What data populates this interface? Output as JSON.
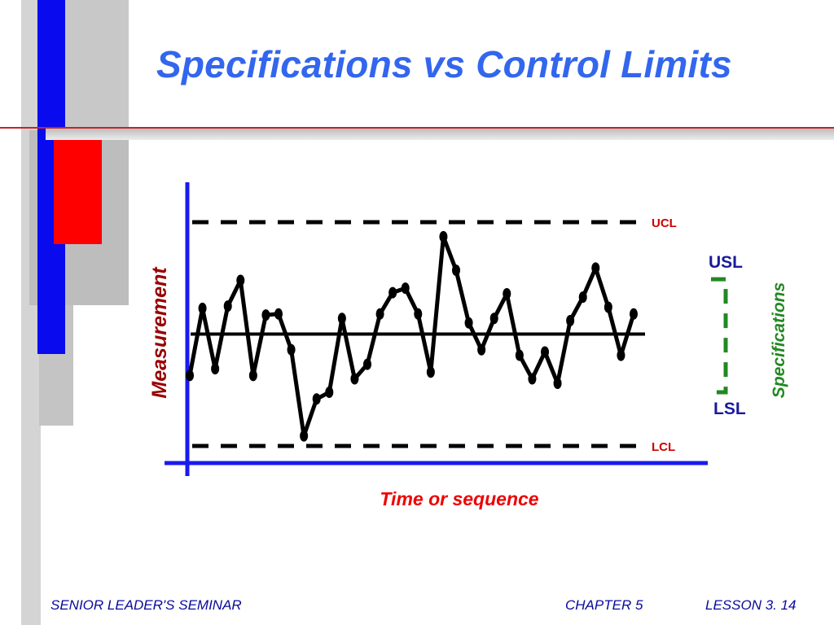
{
  "slide": {
    "title": "Specifications vs Control Limits",
    "footer": {
      "left": "SENIOR LEADER'S SEMINAR",
      "chapter": "CHAPTER  5",
      "lesson": "LESSON  3. 14"
    }
  },
  "colors": {
    "title": "#3366ee",
    "axis": "#1a1aee",
    "control_limit_label": "#cc0000",
    "spec_limit_label": "#1a1a9c",
    "spec_bracket": "#228822",
    "footer": "#0a0a9c"
  },
  "chart_data": {
    "type": "line",
    "xlabel": "Time or sequence",
    "ylabel": "Measurement",
    "control_limits": {
      "upper_label": "UCL",
      "upper": 1.0,
      "lower_label": "LCL",
      "lower": -1.0
    },
    "center_line": 0,
    "specification": {
      "label": "Specifications",
      "upper_label": "USL",
      "upper": 0.49,
      "lower_label": "LSL",
      "lower": -0.52
    },
    "series": [
      {
        "values": [
          -0.37,
          0.23,
          -0.31,
          0.25,
          0.48,
          -0.37,
          0.17,
          0.18,
          -0.14,
          -0.91,
          -0.58,
          -0.52,
          0.14,
          -0.4,
          -0.27,
          0.18,
          0.37,
          0.41,
          0.18,
          -0.34,
          0.87,
          0.57,
          0.1,
          -0.14,
          0.14,
          0.36,
          -0.19,
          -0.4,
          -0.16,
          -0.44,
          0.12,
          0.33,
          0.59,
          0.24,
          -0.19,
          0.18
        ]
      }
    ]
  }
}
